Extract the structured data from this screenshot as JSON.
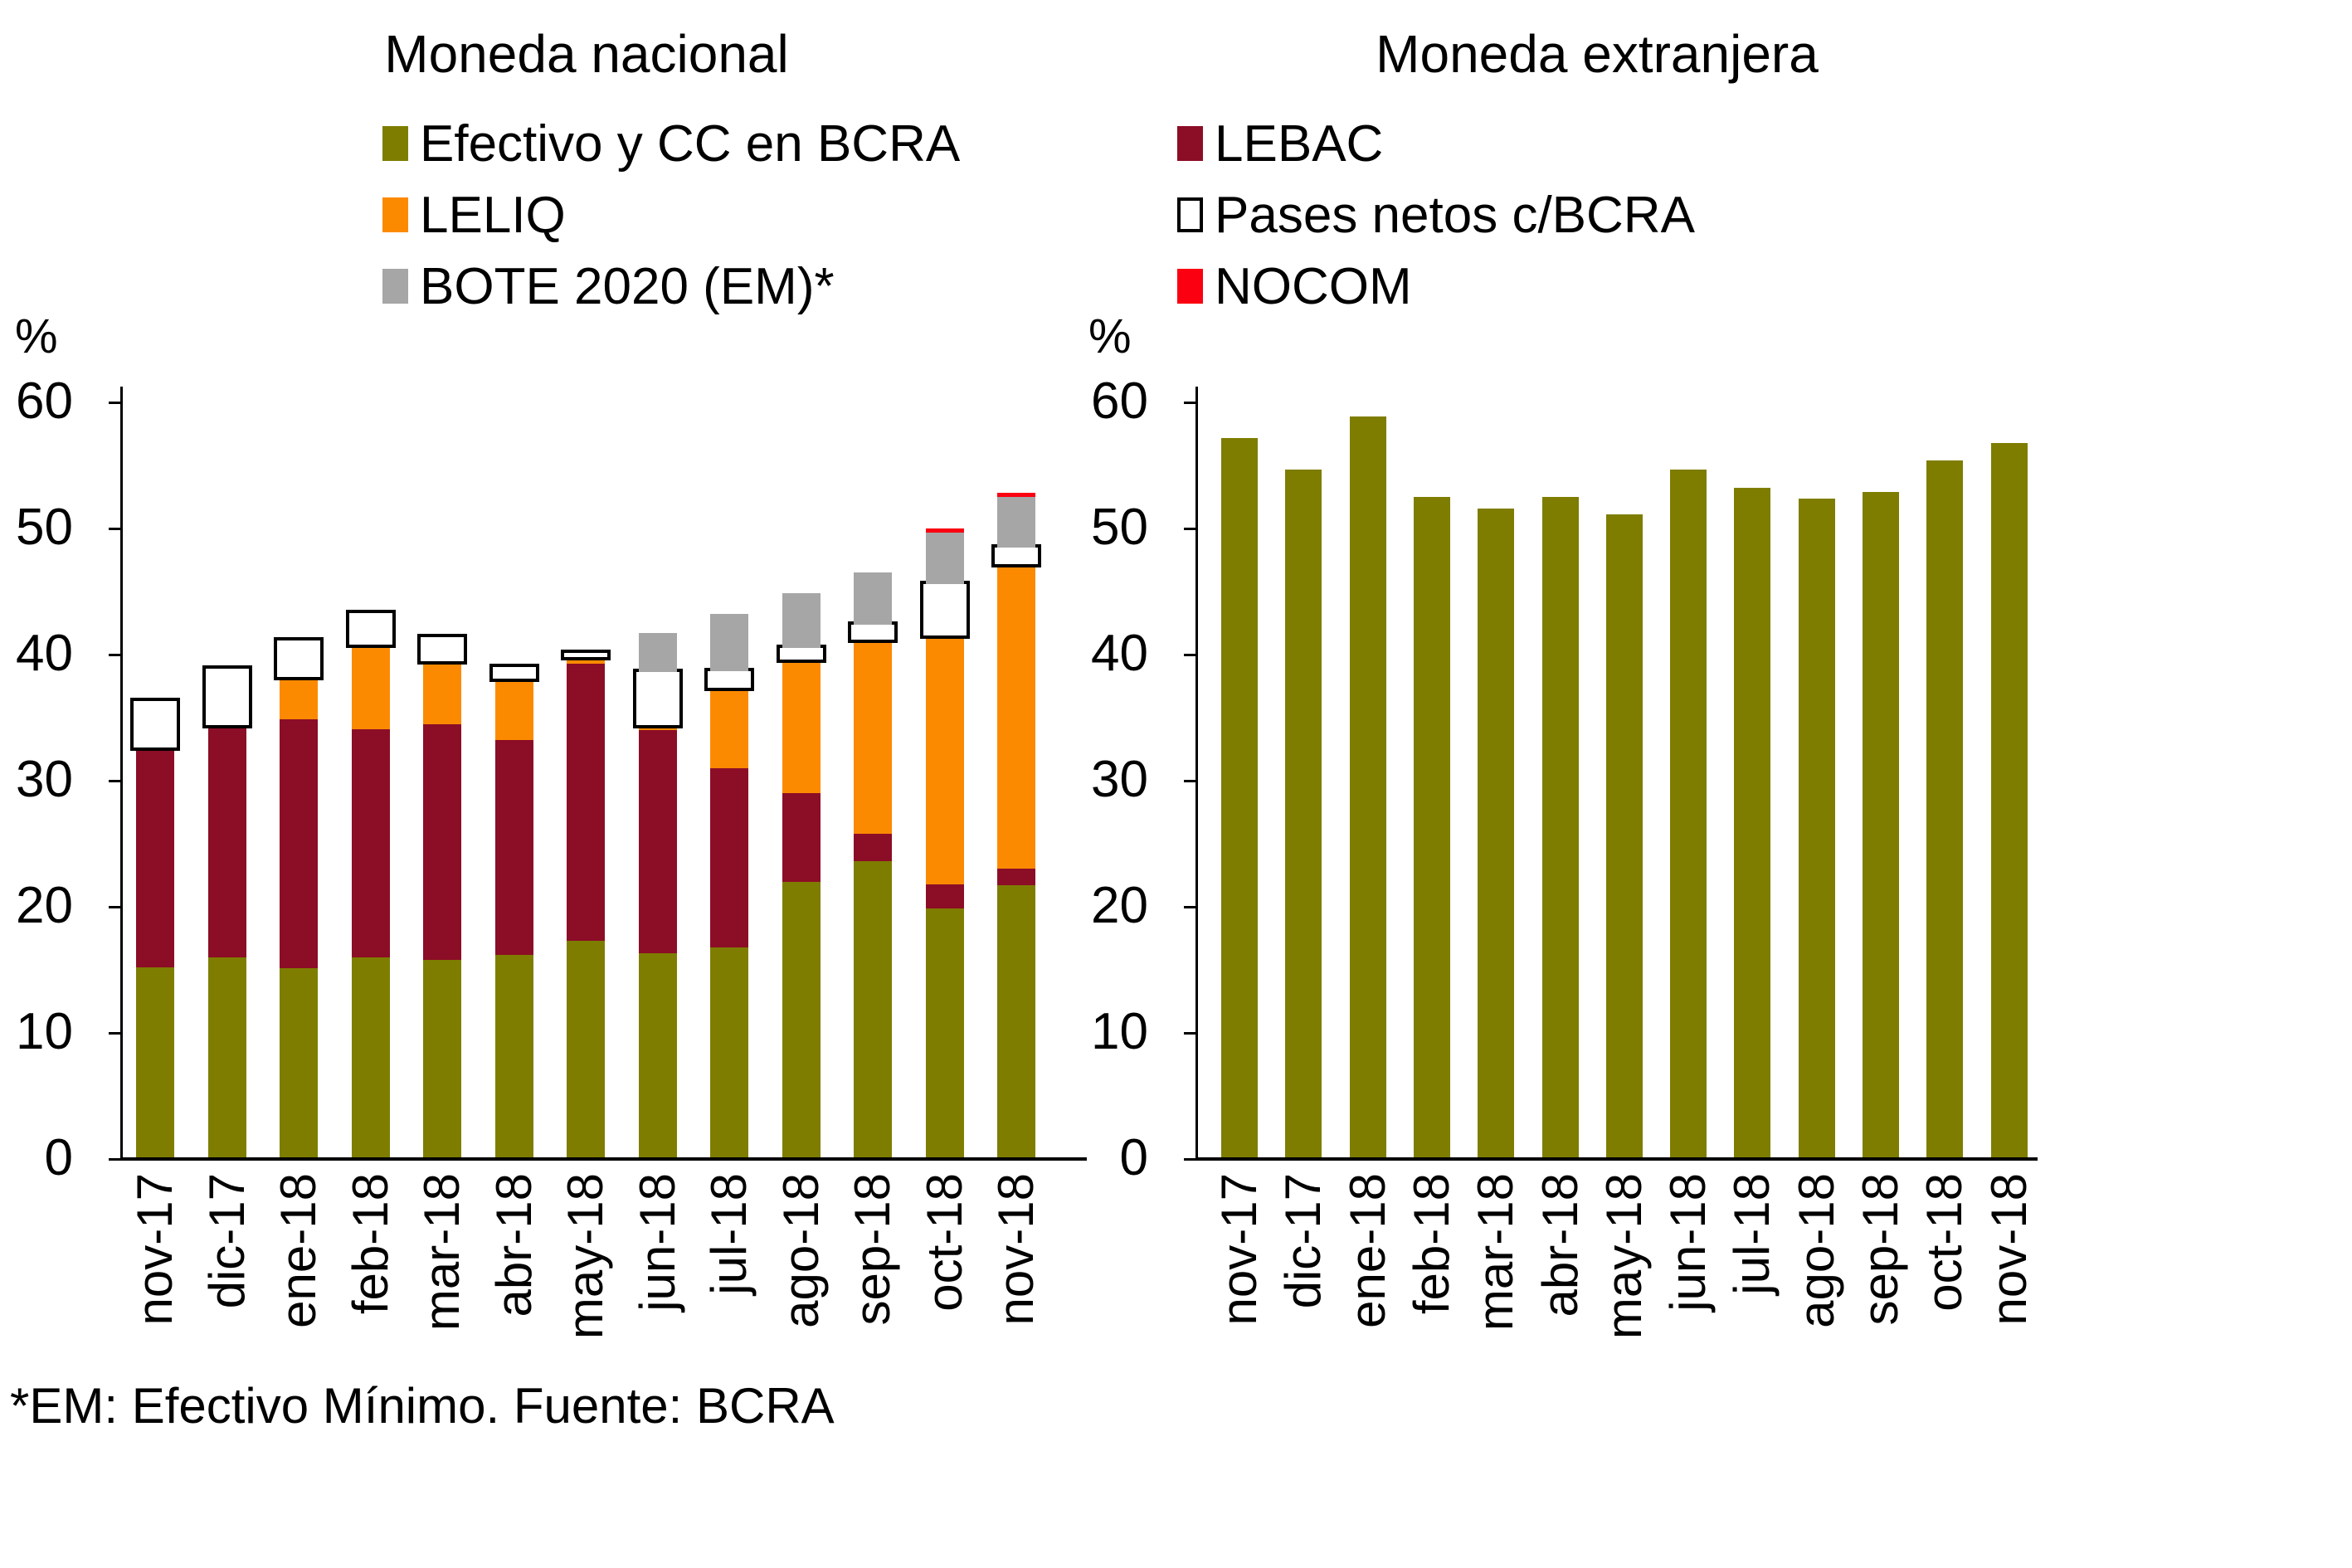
{
  "titles": {
    "left": "Moneda nacional",
    "right": "Moneda extranjera"
  },
  "ylabel_symbol": "%",
  "footer_note": "*EM: Efectivo Mínimo. Fuente: BCRA",
  "colors": {
    "olive": "#7E7D00",
    "maroon": "#8C0D26",
    "orange": "#FC8A00",
    "gray": "#A6A6A6",
    "red": "#FA0011",
    "white": "#FFFFFF",
    "black": "#000000"
  },
  "legend": {
    "left": [
      {
        "label": "Efectivo y CC en BCRA",
        "color": "#7E7D00"
      },
      {
        "label": "LELIQ",
        "color": "#FC8A00"
      },
      {
        "label": "BOTE 2020 (EM)*",
        "color": "#A6A6A6"
      }
    ],
    "right": [
      {
        "label": "LEBAC",
        "color": "#8C0D26"
      },
      {
        "label": "Pases netos c/BCRA",
        "color": "#FFFFFF",
        "border": "#000000"
      },
      {
        "label": "NOCOM",
        "color": "#FA0011"
      }
    ]
  },
  "chart_data": [
    {
      "type": "bar",
      "stacked": true,
      "title": "Moneda nacional",
      "ylabel": "%",
      "ylim": [
        0,
        60
      ],
      "yticks": [
        0,
        10,
        20,
        30,
        40,
        50,
        60
      ],
      "grid": false,
      "categories": [
        "nov-17",
        "dic-17",
        "ene-18",
        "feb-18",
        "mar-18",
        "abr-18",
        "may-18",
        "jun-18",
        "jul-18",
        "ago-18",
        "sep-18",
        "oct-18",
        "nov-18"
      ],
      "series": [
        {
          "name": "Efectivo y CC en BCRA",
          "color": "#7E7D00",
          "values": [
            15.2,
            16.0,
            15.1,
            16.0,
            15.8,
            16.2,
            17.3,
            16.3,
            16.8,
            22.0,
            23.6,
            19.9,
            21.7
          ]
        },
        {
          "name": "LEBAC",
          "color": "#8C0D26",
          "values": [
            17.4,
            18.4,
            19.8,
            18.1,
            18.7,
            17.0,
            22.0,
            17.7,
            14.2,
            7.0,
            2.2,
            1.9,
            1.3
          ]
        },
        {
          "name": "LELIQ",
          "color": "#FC8A00",
          "values": [
            0,
            0,
            3.3,
            6.7,
            5.0,
            4.9,
            0.5,
            0.4,
            6.4,
            10.6,
            15.4,
            19.7,
            24.2
          ]
        },
        {
          "name": "Pases netos c/BCRA",
          "color": "#FFFFFF",
          "border": "#000000",
          "values": [
            3.7,
            4.5,
            2.9,
            2.5,
            1.9,
            0.9,
            0.3,
            4.2,
            1.3,
            0.9,
            1.2,
            4.1,
            1.3
          ]
        },
        {
          "name": "BOTE 2020 (EM)*",
          "color": "#A6A6A6",
          "values": [
            0,
            0,
            0,
            0,
            0,
            0,
            0,
            3.1,
            4.5,
            4.4,
            4.1,
            4.2,
            4.0
          ]
        },
        {
          "name": "NOCOM",
          "color": "#FA0011",
          "values": [
            0,
            0,
            0,
            0,
            0,
            0,
            0,
            0,
            0,
            0,
            0,
            0.2,
            0.3
          ]
        }
      ]
    },
    {
      "type": "bar",
      "stacked": false,
      "title": "Moneda extranjera",
      "ylabel": "%",
      "ylim": [
        0,
        60
      ],
      "yticks": [
        0,
        10,
        20,
        30,
        40,
        50,
        60
      ],
      "grid": false,
      "categories": [
        "nov-17",
        "dic-17",
        "ene-18",
        "feb-18",
        "mar-18",
        "abr-18",
        "may-18",
        "jun-18",
        "jul-18",
        "ago-18",
        "sep-18",
        "oct-18",
        "nov-18"
      ],
      "series": [
        {
          "name": "Moneda extranjera",
          "color": "#7E7D00",
          "values": [
            57.2,
            54.7,
            58.9,
            52.5,
            51.6,
            52.5,
            51.1,
            54.7,
            53.2,
            52.4,
            52.9,
            55.4,
            56.8
          ]
        }
      ]
    }
  ]
}
